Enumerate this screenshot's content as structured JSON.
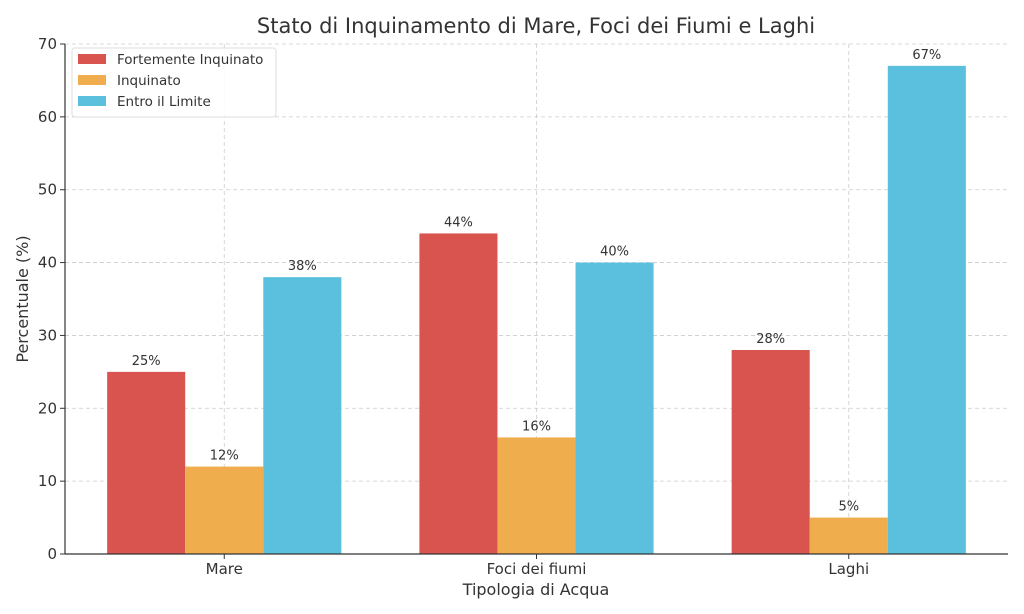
{
  "chart_data": {
    "type": "bar",
    "title": "Stato di Inquinamento di Mare, Foci dei Fiumi e Laghi",
    "xlabel": "Tipologia di Acqua",
    "ylabel": "Percentuale (%)",
    "categories": [
      "Mare",
      "Foci dei fiumi",
      "Laghi"
    ],
    "series": [
      {
        "name": "Fortemente Inquinato",
        "values": [
          25,
          44,
          28
        ],
        "color": "#d9534f",
        "labels": [
          "25%",
          "44%",
          "28%"
        ]
      },
      {
        "name": "Inquinato",
        "values": [
          12,
          16,
          5
        ],
        "color": "#f0ad4e",
        "labels": [
          "12%",
          "16%",
          "5%"
        ]
      },
      {
        "name": "Entro il Limite",
        "values": [
          38,
          40,
          67
        ],
        "color": "#5bc0de",
        "labels": [
          "38%",
          "40%",
          "67%"
        ]
      }
    ],
    "ylim": [
      0,
      70
    ],
    "yticks": [
      "0",
      "10",
      "20",
      "30",
      "40",
      "50",
      "60",
      "70"
    ],
    "grid": true,
    "legend": "top-left"
  }
}
